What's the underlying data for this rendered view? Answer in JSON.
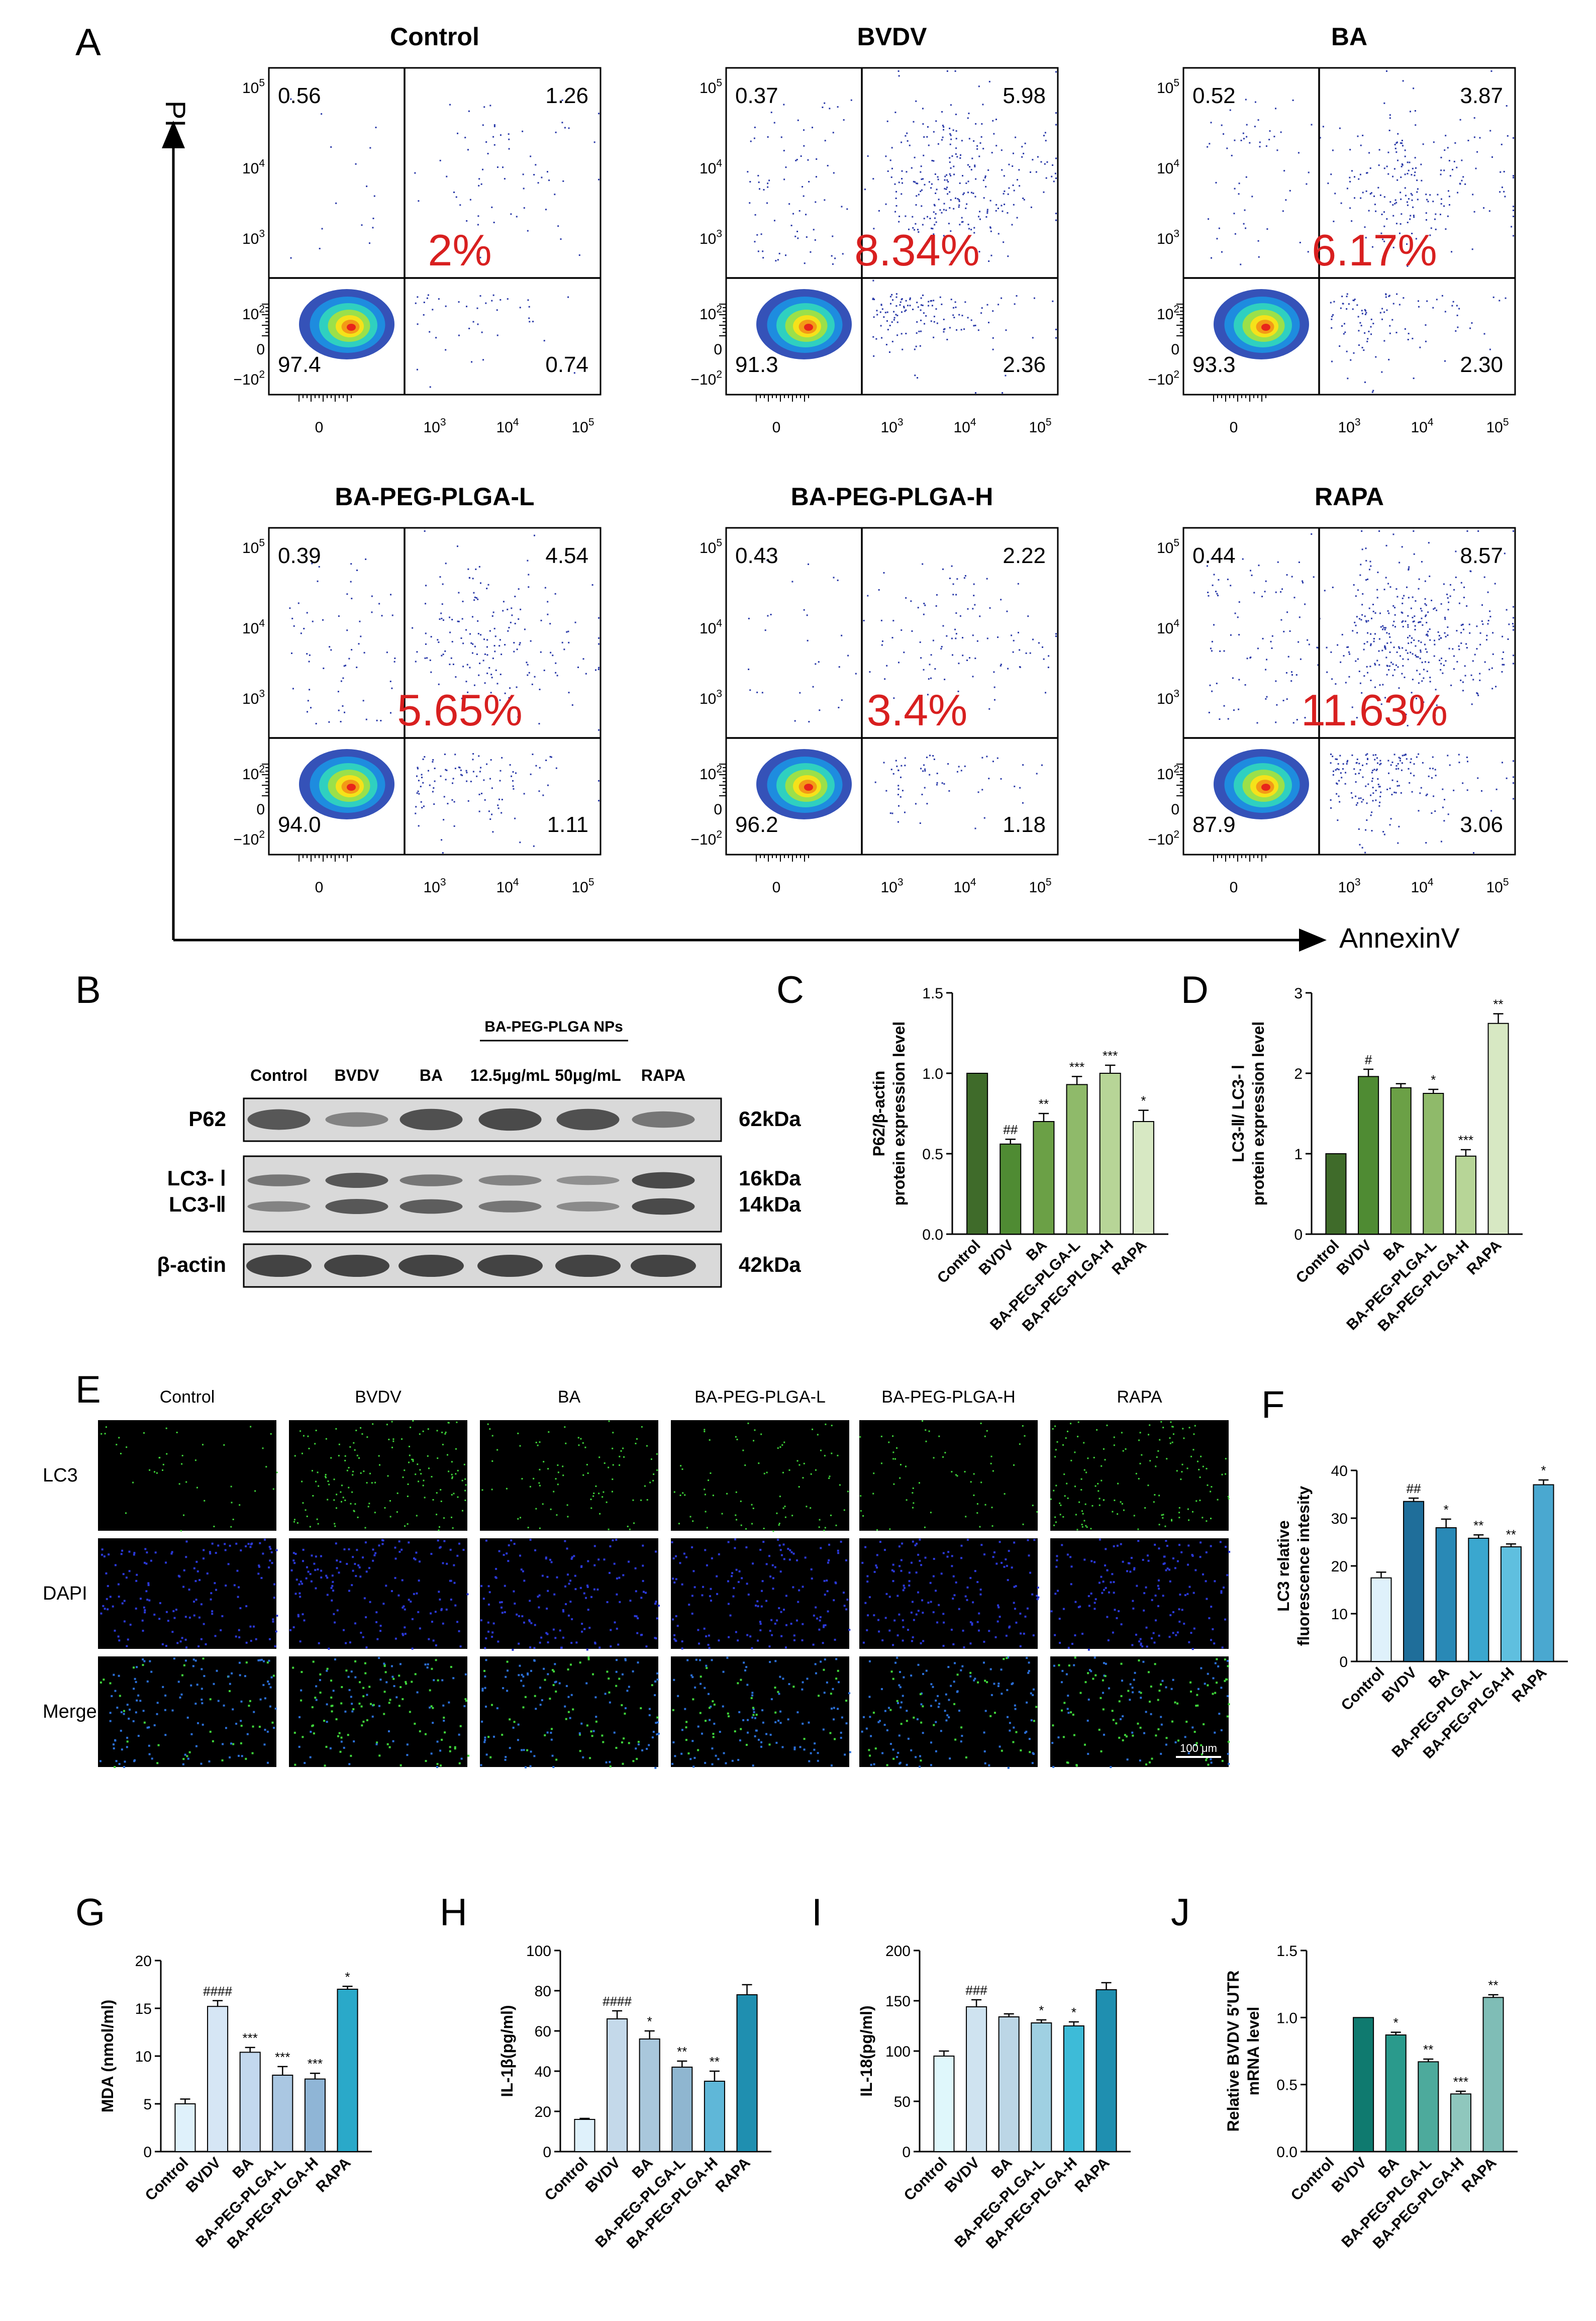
{
  "panel_letters": [
    "A",
    "B",
    "C",
    "D",
    "E",
    "F",
    "G",
    "H",
    "I",
    "J"
  ],
  "flow": {
    "y_axis_label": "PI",
    "x_axis_label": "AnnexinV",
    "plots": [
      {
        "title": "Control",
        "ul": "0.56",
        "ur": "1.26",
        "ll": "97.4",
        "lr": "0.74",
        "pct": "2%",
        "density": 0.25
      },
      {
        "title": "BVDV",
        "ul": "0.37",
        "ur": "5.98",
        "ll": "91.3",
        "lr": "2.36",
        "pct": "8.34%",
        "density": 1.0
      },
      {
        "title": "BA",
        "ul": "0.52",
        "ur": "3.87",
        "ll": "93.3",
        "lr": "2.30",
        "pct": "6.17%",
        "density": 0.75
      },
      {
        "title": "BA-PEG-PLGA-L",
        "ul": "0.39",
        "ur": "4.54",
        "ll": "94.0",
        "lr": "1.11",
        "pct": "5.65%",
        "density": 0.7
      },
      {
        "title": "BA-PEG-PLGA-H",
        "ul": "0.43",
        "ur": "2.22",
        "ll": "96.2",
        "lr": "1.18",
        "pct": "3.4%",
        "density": 0.4
      },
      {
        "title": "RAPA",
        "ul": "0.44",
        "ur": "8.57",
        "ll": "87.9",
        "lr": "3.06",
        "pct": "11.63%",
        "density": 1.3
      }
    ],
    "y_ticks": [
      {
        "b": "10",
        "e": "5"
      },
      {
        "b": "10",
        "e": "4"
      },
      {
        "b": "10",
        "e": "3"
      },
      {
        "b": "10",
        "e": "2"
      },
      {
        "b": "0",
        "e": ""
      },
      {
        "b": "−10",
        "e": "2"
      }
    ],
    "x_ticks": [
      {
        "b": "0",
        "e": ""
      },
      {
        "b": "10",
        "e": "3"
      },
      {
        "b": "10",
        "e": "4"
      },
      {
        "b": "10",
        "e": "5"
      }
    ]
  },
  "western": {
    "np_label": "BA-PEG-PLGA NPs",
    "lanes": [
      "Control",
      "BVDV",
      "BA",
      "12.5μg/mL",
      "50μg/mL",
      "RAPA"
    ],
    "rows": [
      {
        "label": "P62",
        "kda": "62kDa"
      },
      {
        "label": "LC3- Ⅰ",
        "kda": "16kDa"
      },
      {
        "label": "LC3-Ⅱ",
        "kda": "14kDa"
      },
      {
        "label": "β-actin",
        "kda": "42kDa"
      }
    ],
    "p62_intensity": [
      0.85,
      0.5,
      0.9,
      0.95,
      0.9,
      0.6
    ],
    "lc3i_intensity": [
      0.6,
      0.85,
      0.6,
      0.5,
      0.4,
      0.95
    ],
    "lc3ii_intensity": [
      0.5,
      0.85,
      0.8,
      0.6,
      0.45,
      0.95
    ]
  },
  "ifm": {
    "columns": [
      "Control",
      "BVDV",
      "BA",
      "BA-PEG-PLGA-L",
      "BA-PEG-PLGA-H",
      "RAPA"
    ],
    "rows": [
      "LC3",
      "DAPI",
      "Merge"
    ],
    "scale_bar": "100 μm",
    "lc3_intensity": [
      0.3,
      1.0,
      0.6,
      0.45,
      0.4,
      0.9
    ]
  },
  "chart_data": [
    {
      "panel": "C",
      "type": "bar",
      "ylabel": "P62/β-actin\nprotein expression level",
      "ylim": [
        0,
        1.5
      ],
      "yticks": [
        "0.0",
        "0.5",
        "1.0",
        "1.5"
      ],
      "categories": [
        "Control",
        "BVDV",
        "BA",
        "BA-PEG-PLGA-L",
        "BA-PEG-PLGA-H",
        "RAPA"
      ],
      "values": [
        1.0,
        0.56,
        0.7,
        0.93,
        1.0,
        0.7
      ],
      "errors": [
        0,
        0.03,
        0.05,
        0.05,
        0.05,
        0.07
      ],
      "sig": [
        "",
        "##",
        "**",
        "***",
        "***",
        "*"
      ],
      "colors": [
        "#3f6b2a",
        "#4f8b33",
        "#6ba046",
        "#8fba6a",
        "#b7d597",
        "#d7e8c3"
      ]
    },
    {
      "panel": "D",
      "type": "bar",
      "ylabel": "LC3-Ⅱ/ LC3- Ⅰ\nprotein expression level",
      "ylim": [
        0,
        3
      ],
      "yticks": [
        "0",
        "1",
        "2",
        "3"
      ],
      "categories": [
        "Control",
        "BVDV",
        "BA",
        "BA-PEG-PLGA-L",
        "BA-PEG-PLGA-H",
        "RAPA"
      ],
      "values": [
        1.0,
        1.96,
        1.82,
        1.75,
        0.97,
        2.62
      ],
      "errors": [
        0,
        0.09,
        0.05,
        0.05,
        0.08,
        0.12
      ],
      "sig": [
        "",
        "#",
        "",
        "*",
        "***",
        "**"
      ],
      "colors": [
        "#3f6b2a",
        "#4f8b33",
        "#6ba046",
        "#8fba6a",
        "#b7d597",
        "#d7e8c3"
      ]
    },
    {
      "panel": "F",
      "type": "bar",
      "ylabel": "LC3 relative\nfluorescence intesity",
      "ylim": [
        0,
        40
      ],
      "yticks": [
        "0",
        "10",
        "20",
        "30",
        "40"
      ],
      "categories": [
        "Control",
        "BVDV",
        "BA",
        "BA-PEG-PLGA-L",
        "BA-PEG-PLGA-H",
        "RAPA"
      ],
      "values": [
        17.5,
        33.5,
        28,
        25.8,
        24,
        37
      ],
      "errors": [
        1.2,
        0.7,
        1.8,
        0.7,
        0.6,
        1.0
      ],
      "sig": [
        "",
        "##",
        "*",
        "**",
        "**",
        "*"
      ],
      "colors": [
        "#dff1fb",
        "#1f6e9a",
        "#2989b6",
        "#3aa7cf",
        "#5fbfdf",
        "#4aa8d0"
      ]
    },
    {
      "panel": "G",
      "type": "bar",
      "ylabel": "MDA (nmol/ml)",
      "ylim": [
        0,
        20
      ],
      "yticks": [
        "0",
        "5",
        "10",
        "15",
        "20"
      ],
      "categories": [
        "Control",
        "BVDV",
        "BA",
        "BA-PEG-PLGA-L",
        "BA-PEG-PLGA-H",
        "RAPA"
      ],
      "values": [
        5,
        15.2,
        10.4,
        8,
        7.6,
        17
      ],
      "errors": [
        0.5,
        0.6,
        0.5,
        0.9,
        0.6,
        0.3
      ],
      "sig": [
        "",
        "####",
        "***",
        "***",
        "***",
        "*"
      ],
      "colors": [
        "#dff1fb",
        "#d6e6f5",
        "#c3d8ee",
        "#aac7e2",
        "#8fb5d6",
        "#2aa9c9"
      ]
    },
    {
      "panel": "H",
      "type": "bar",
      "ylabel": "IL-1β(pg/ml)",
      "ylim": [
        0,
        100
      ],
      "yticks": [
        "0",
        "20",
        "40",
        "60",
        "80",
        "100"
      ],
      "categories": [
        "Control",
        "BVDV",
        "BA",
        "BA-PEG-PLGA-L",
        "BA-PEG-PLGA-H",
        "RAPA"
      ],
      "values": [
        16,
        66,
        56,
        42,
        35,
        78
      ],
      "errors": [
        0.5,
        4,
        4,
        3,
        5,
        5
      ],
      "sig": [
        "",
        "####",
        "*",
        "**",
        "**",
        ""
      ],
      "colors": [
        "#dff1fb",
        "#c4d9ea",
        "#a9c7dc",
        "#8fb6d0",
        "#5fb7d8",
        "#1f8fb0"
      ]
    },
    {
      "panel": "I",
      "type": "bar",
      "ylabel": "IL-18(pg/ml)",
      "ylim": [
        0,
        200
      ],
      "yticks": [
        "0",
        "50",
        "100",
        "150",
        "200"
      ],
      "categories": [
        "Control",
        "BVDV",
        "BA",
        "BA-PEG-PLGA-L",
        "BA-PEG-PLGA-H",
        "RAPA"
      ],
      "values": [
        95,
        144,
        134,
        128,
        125,
        161
      ],
      "errors": [
        5,
        7,
        3,
        3,
        4,
        7
      ],
      "sig": [
        "",
        "###",
        "",
        "*",
        "*",
        ""
      ],
      "colors": [
        "#dff7fb",
        "#cfe3f0",
        "#bcd6e6",
        "#9fd0e2",
        "#3dbbd8",
        "#1f8fb0"
      ]
    },
    {
      "panel": "J",
      "type": "bar",
      "ylabel": "Relative BVDV 5′UTR\nmRNA level",
      "ylim": [
        0,
        1.5
      ],
      "yticks": [
        "0.0",
        "0.5",
        "1.0",
        "1.5"
      ],
      "categories": [
        "Control",
        "BVDV",
        "BA",
        "BA-PEG-PLGA-L",
        "BA-PEG-PLGA-H",
        "RAPA"
      ],
      "values": [
        0,
        1.0,
        0.87,
        0.67,
        0.43,
        1.15
      ],
      "errors": [
        0,
        0,
        0.02,
        0.02,
        0.02,
        0.02
      ],
      "sig": [
        "",
        "",
        "*",
        "**",
        "***",
        "**"
      ],
      "colors": [
        "#1e6b63",
        "#0f7a6f",
        "#2a9a8c",
        "#4daa9c",
        "#8fc7bd",
        "#7fbdb6"
      ]
    }
  ]
}
